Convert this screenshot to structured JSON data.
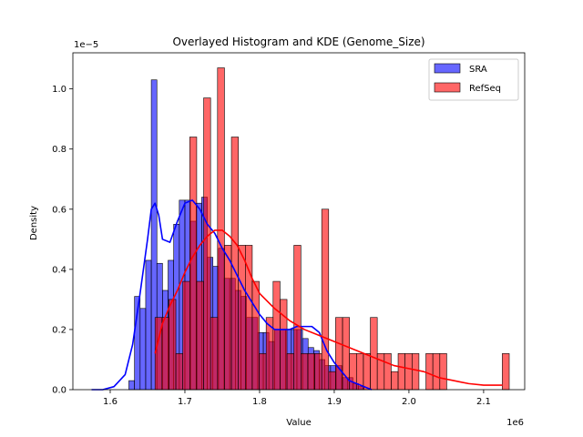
{
  "chart_data": {
    "type": "histogram",
    "title": "Overlayed Histogram and KDE (Genome_Size)",
    "xlabel": "Value",
    "ylabel": "Density",
    "x_offset_label": "1e6",
    "y_offset_label": "1e−5",
    "xlim": [
      1.55,
      2.155
    ],
    "ylim": [
      0,
      1.12
    ],
    "x_ticks": [
      1.6,
      1.7,
      1.8,
      1.9,
      2.0,
      2.1
    ],
    "x_tick_labels": [
      "1.6",
      "1.7",
      "1.8",
      "1.9",
      "2.0",
      "2.1"
    ],
    "y_ticks": [
      0.0,
      0.2,
      0.4,
      0.6,
      0.8,
      1.0
    ],
    "y_tick_labels": [
      "0.0",
      "0.2",
      "0.4",
      "0.6",
      "0.8",
      "1.0"
    ],
    "legend_position": "top-right",
    "series": [
      {
        "name": "SRA",
        "color": "#0000ff",
        "bin_start": 1.625,
        "bin_width": 0.0075,
        "values": [
          0.03,
          0.31,
          0.27,
          0.43,
          1.03,
          0.42,
          0.33,
          0.43,
          0.55,
          0.63,
          0.63,
          0.56,
          0.62,
          0.64,
          0.44,
          0.41,
          0.47,
          0.37,
          0.37,
          0.33,
          0.31,
          0.24,
          0.24,
          0.19,
          0.19,
          0.16,
          0.2,
          0.2,
          0.2,
          0.2,
          0.2,
          0.17,
          0.14,
          0.13,
          0.1,
          0.08,
          0.08,
          0.08,
          0.04,
          0.04,
          0.02,
          0.01
        ]
      },
      {
        "name": "RefSeq",
        "color": "#ff0000",
        "bin_start": 1.66,
        "bin_width": 0.0093,
        "values": [
          0.24,
          0.24,
          0.3,
          0.12,
          0.36,
          0.84,
          0.36,
          0.97,
          0.24,
          1.07,
          0.48,
          0.84,
          0.48,
          0.48,
          0.36,
          0.12,
          0.24,
          0.36,
          0.3,
          0.12,
          0.48,
          0.12,
          0.12,
          0.12,
          0.6,
          0.06,
          0.24,
          0.24,
          0.12,
          0.12,
          0.12,
          0.24,
          0.12,
          0.12,
          0.06,
          0.12,
          0.12,
          0.12,
          0.0,
          0.12,
          0.12,
          0.12,
          0.0,
          0.0,
          0.0,
          0.0,
          0.0,
          0.0,
          0.0,
          0.0,
          0.12
        ]
      }
    ],
    "kde": [
      {
        "name": "SRA",
        "color": "#0000ff",
        "x": [
          1.575,
          1.59,
          1.605,
          1.62,
          1.63,
          1.64,
          1.65,
          1.655,
          1.66,
          1.665,
          1.67,
          1.68,
          1.69,
          1.7,
          1.71,
          1.72,
          1.73,
          1.74,
          1.75,
          1.76,
          1.77,
          1.78,
          1.79,
          1.8,
          1.81,
          1.82,
          1.83,
          1.84,
          1.85,
          1.86,
          1.87,
          1.875,
          1.88,
          1.89,
          1.9,
          1.91,
          1.92,
          1.93,
          1.94,
          1.95
        ],
        "y": [
          0.0,
          0.0,
          0.01,
          0.05,
          0.15,
          0.32,
          0.5,
          0.6,
          0.62,
          0.58,
          0.5,
          0.49,
          0.56,
          0.62,
          0.63,
          0.6,
          0.55,
          0.52,
          0.47,
          0.43,
          0.38,
          0.33,
          0.29,
          0.25,
          0.22,
          0.2,
          0.2,
          0.2,
          0.21,
          0.21,
          0.21,
          0.2,
          0.19,
          0.13,
          0.09,
          0.06,
          0.03,
          0.02,
          0.01,
          0.0
        ]
      },
      {
        "name": "RefSeq",
        "color": "#ff0000",
        "x": [
          1.66,
          1.67,
          1.68,
          1.69,
          1.7,
          1.71,
          1.72,
          1.73,
          1.74,
          1.75,
          1.76,
          1.77,
          1.78,
          1.79,
          1.8,
          1.82,
          1.84,
          1.86,
          1.88,
          1.9,
          1.92,
          1.94,
          1.96,
          1.98,
          2.0,
          2.02,
          2.04,
          2.06,
          2.08,
          2.1,
          2.125
        ],
        "y": [
          0.12,
          0.22,
          0.28,
          0.33,
          0.39,
          0.44,
          0.48,
          0.51,
          0.53,
          0.53,
          0.51,
          0.48,
          0.43,
          0.37,
          0.32,
          0.27,
          0.23,
          0.2,
          0.18,
          0.16,
          0.14,
          0.12,
          0.1,
          0.08,
          0.07,
          0.06,
          0.04,
          0.03,
          0.02,
          0.015,
          0.015
        ]
      }
    ]
  }
}
